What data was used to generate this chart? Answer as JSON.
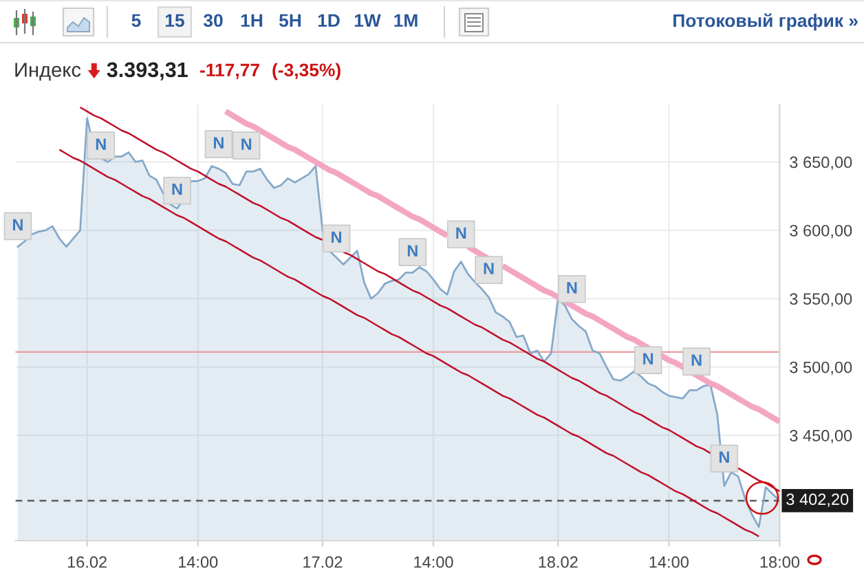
{
  "chart_data": {
    "type": "area",
    "title": "Индекс",
    "categories": [
      null,
      null,
      null,
      null,
      null,
      null,
      null,
      null,
      null,
      null,
      "16.02",
      null,
      null,
      null,
      null,
      null,
      null,
      null,
      null,
      null,
      null,
      null,
      null,
      null,
      null,
      null,
      "14:00",
      null,
      null,
      null,
      null,
      null,
      null,
      null,
      null,
      null,
      null,
      null,
      null,
      null,
      null,
      null,
      null,
      null,
      "17.02",
      null,
      null,
      null,
      null,
      null,
      null,
      null,
      null,
      null,
      null,
      null,
      null,
      null,
      null,
      null,
      "14:00",
      null,
      null,
      null,
      null,
      null,
      null,
      null,
      null,
      null,
      null,
      null,
      null,
      null,
      null,
      null,
      null,
      null,
      "18.02",
      null,
      null,
      null,
      null,
      null,
      null,
      null,
      null,
      null,
      null,
      null,
      null,
      null,
      null,
      null,
      "14:00",
      null,
      null,
      null,
      null,
      null,
      null,
      null,
      null,
      null,
      null,
      null,
      null,
      null,
      null,
      null,
      "18:00"
    ],
    "series": [
      {
        "color": "#86a9c9",
        "values": [
          3588,
          3592,
          3597,
          3599,
          3600,
          3603,
          3594,
          3588,
          3594,
          3600,
          3682,
          3660,
          3653,
          3650,
          3654,
          3654,
          3657,
          3650,
          3651,
          3640,
          3637,
          3627,
          3619,
          3616,
          3623,
          3636,
          3636,
          3638,
          3647,
          3645,
          3642,
          3634,
          3633,
          3643,
          3643,
          3645,
          3637,
          3631,
          3633,
          3638,
          3635,
          3638,
          3641,
          3647,
          3600,
          3585,
          3580,
          3575,
          3580,
          3585,
          3562,
          3550,
          3554,
          3561,
          3563,
          3564,
          3569,
          3569,
          3573,
          3570,
          3564,
          3557,
          3553,
          3570,
          3577,
          3568,
          3562,
          3557,
          3551,
          3540,
          3537,
          3533,
          3522,
          3523,
          3510,
          3512,
          3504,
          3510,
          3550,
          3545,
          3535,
          3530,
          3526,
          3512,
          3510,
          3500,
          3491,
          3490,
          3493,
          3497,
          3493,
          3488,
          3486,
          3482,
          3479,
          3478,
          3477,
          3483,
          3483,
          3486,
          3487,
          3465,
          3413,
          3423,
          3420,
          3404,
          3392,
          3383,
          3412,
          3407,
          3402
        ]
      },
      {
        "type": "line",
        "color": "#c0102a",
        "values": [
          null,
          null,
          null,
          null,
          null,
          null,
          3659,
          3656,
          3653,
          3651,
          3648,
          3645,
          3642,
          3639,
          3637,
          3634,
          3631,
          3628,
          3625,
          3623,
          3620,
          3617,
          3614,
          3611,
          3609,
          3606,
          3603,
          3600,
          3597,
          3594,
          3592,
          3589,
          3586,
          3583,
          3580,
          3578,
          3575,
          3572,
          3569,
          3566,
          3564,
          3561,
          3558,
          3555,
          3552,
          3550,
          3547,
          3544,
          3541,
          3538,
          3536,
          3533,
          3530,
          3527,
          3524,
          3522,
          3519,
          3516,
          3513,
          3510,
          3508,
          3505,
          3502,
          3499,
          3496,
          3494,
          3491,
          3488,
          3485,
          3482,
          3479,
          3477,
          3474,
          3471,
          3468,
          3465,
          3463,
          3460,
          3457,
          3454,
          3451,
          3449,
          3446,
          3443,
          3440,
          3437,
          3435,
          3432,
          3429,
          3426,
          3423,
          3421,
          3418,
          3415,
          3412,
          3409,
          3407,
          3404,
          3401,
          3398,
          3395,
          3393,
          3390,
          3387,
          3384,
          3381,
          3379,
          3376,
          null,
          null,
          null
        ]
      },
      {
        "type": "line",
        "color": "#c0102a",
        "values": [
          null,
          null,
          null,
          null,
          null,
          null,
          null,
          null,
          null,
          3690,
          3687,
          3684,
          3682,
          3679,
          3676,
          3673,
          3671,
          3668,
          3665,
          3662,
          3659,
          3657,
          3654,
          3651,
          3648,
          3645,
          3643,
          3640,
          3637,
          3634,
          3632,
          3629,
          3626,
          3623,
          3620,
          3618,
          3615,
          3612,
          3609,
          3607,
          3604,
          3601,
          3598,
          3595,
          3593,
          null,
          null,
          3584,
          3582,
          3579,
          3576,
          3573,
          3570,
          3568,
          3565,
          3562,
          3559,
          3556,
          3554,
          3551,
          3548,
          3545,
          3543,
          3540,
          3537,
          3534,
          3531,
          3529,
          3526,
          3523,
          3520,
          3518,
          3515,
          3512,
          3509,
          3506,
          3504,
          3501,
          3498,
          3495,
          3492,
          3490,
          3487,
          3484,
          3481,
          3479,
          3476,
          3473,
          3470,
          3467,
          3465,
          3462,
          3459,
          3456,
          3454,
          3451,
          3448,
          3445,
          3442,
          3440,
          3437,
          null,
          null,
          null,
          3426,
          3423,
          3420,
          3417,
          3415,
          3412,
          3409
        ]
      },
      {
        "type": "line",
        "color": "#f3a6c2",
        "values": [
          null,
          null,
          null,
          null,
          null,
          null,
          null,
          null,
          null,
          null,
          null,
          null,
          null,
          null,
          null,
          null,
          null,
          null,
          null,
          null,
          null,
          null,
          null,
          null,
          null,
          null,
          null,
          null,
          null,
          null,
          3687,
          3684,
          3681,
          3678,
          3676,
          3673,
          3670,
          3667,
          3664,
          3661,
          3659,
          3656,
          3653,
          3650,
          3647,
          3644,
          3642,
          3639,
          3636,
          3633,
          3630,
          3627,
          3625,
          3622,
          3619,
          3616,
          3613,
          3610,
          3608,
          3605,
          3602,
          3599,
          3596,
          null,
          null,
          3588,
          3585,
          3582,
          3579,
          null,
          3574,
          3571,
          3568,
          3565,
          3562,
          3559,
          3556,
          3554,
          3551,
          3548,
          3545,
          3542,
          3539,
          3537,
          3534,
          3531,
          3528,
          3525,
          3522,
          3520,
          3517,
          3514,
          3511,
          3508,
          3505,
          3503,
          3500,
          3497,
          3494,
          3491,
          3488,
          3486,
          3483,
          3480,
          3477,
          3474,
          3471,
          3469,
          3466,
          3463,
          3460
        ]
      },
      {
        "type": "scatter",
        "marker": "square",
        "color": "#e3e3e3",
        "values": [
          3603,
          null,
          null,
          null,
          null,
          null,
          null,
          null,
          null,
          null,
          null,
          null,
          3662,
          null,
          null,
          null,
          null,
          null,
          null,
          null,
          null,
          null,
          null,
          3629,
          null,
          null,
          null,
          null,
          null,
          3663,
          null,
          null,
          null,
          3662,
          null,
          null,
          null,
          null,
          null,
          null,
          null,
          null,
          null,
          null,
          null,
          null,
          3594,
          null,
          null,
          null,
          null,
          null,
          null,
          null,
          null,
          null,
          null,
          3584,
          null,
          null,
          null,
          null,
          null,
          null,
          3597,
          null,
          null,
          null,
          3571,
          null,
          null,
          null,
          null,
          null,
          null,
          null,
          null,
          null,
          null,
          null,
          3557,
          null,
          null,
          null,
          null,
          null,
          null,
          null,
          null,
          null,
          null,
          3505,
          null,
          null,
          null,
          null,
          null,
          null,
          3504,
          null,
          null,
          null,
          3433,
          null,
          null,
          null,
          null,
          null,
          null,
          null,
          null
        ],
        "value_labels": [
          "N",
          null,
          null,
          null,
          null,
          null,
          null,
          null,
          null,
          null,
          null,
          null,
          "N",
          null,
          null,
          null,
          null,
          null,
          null,
          null,
          null,
          null,
          null,
          "N",
          null,
          null,
          null,
          null,
          null,
          "N",
          null,
          null,
          null,
          "N",
          null,
          null,
          null,
          null,
          null,
          null,
          null,
          null,
          null,
          null,
          null,
          null,
          "N",
          null,
          null,
          null,
          null,
          null,
          null,
          null,
          null,
          null,
          null,
          "N",
          null,
          null,
          null,
          null,
          null,
          null,
          "N",
          null,
          null,
          null,
          "N",
          null,
          null,
          null,
          null,
          null,
          null,
          null,
          null,
          null,
          null,
          null,
          "N",
          null,
          null,
          null,
          null,
          null,
          null,
          null,
          null,
          null,
          null,
          "N",
          null,
          null,
          null,
          null,
          null,
          null,
          "N",
          null,
          null,
          null,
          "N",
          null,
          null,
          null,
          null,
          null,
          null,
          null,
          null
        ]
      }
    ],
    "ylim": [
      3373,
      3692
    ],
    "yticks": [
      {
        "value": 3450,
        "label": "3 450,00"
      },
      {
        "value": 3500,
        "label": "3 500,00"
      },
      {
        "value": 3550,
        "label": "3 550,00"
      },
      {
        "value": 3600,
        "label": "3 600,00"
      },
      {
        "value": 3650,
        "label": "3 650,00"
      }
    ],
    "grid": true,
    "line_style": "solid",
    "ref_lines": [
      {
        "axis": "y",
        "value": 3511,
        "color": "#eba3a3"
      },
      {
        "axis": "y",
        "value": 3402.2,
        "label": "3 402,20",
        "line_style": "dashed",
        "color": "#5a5a5a"
      }
    ],
    "annotations": [
      "3.393,31",
      "-117,77",
      "(-3,35%)",
      "5",
      "15",
      "30",
      "1H",
      "5H",
      "1D",
      "1W",
      "1M",
      "Потоковый график »"
    ]
  }
}
